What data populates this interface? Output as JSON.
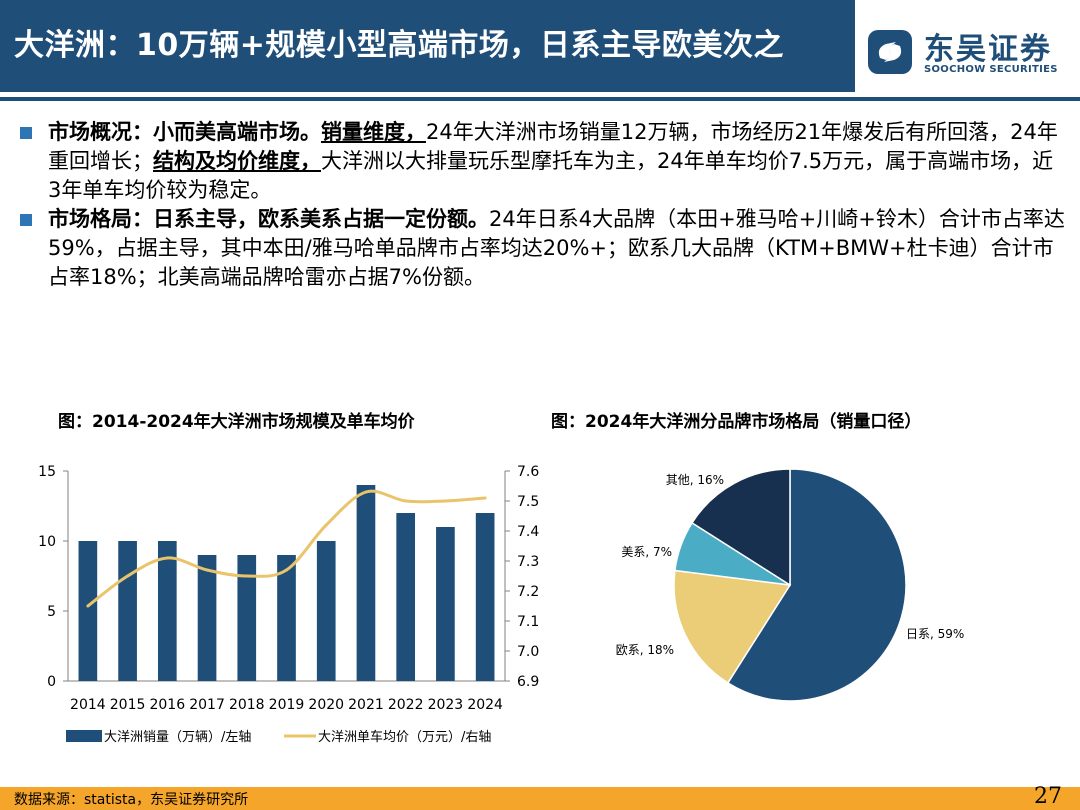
{
  "header": {
    "title": "大洋洲：10万辆+规模小型高端市场，日系主导欧美次之",
    "logo_cn": "东吴证券",
    "logo_en": "SOOCHOW SECURITIES"
  },
  "bullets": [
    {
      "lead": "市场概况：小而美高端市场。",
      "u1": "销量维度，",
      "t1": "24年大洋洲市场销量12万辆，市场经历21年爆发后有所回落，24年重回增长；",
      "u2": "结构及均价维度，",
      "t2": "大洋洲以大排量玩乐型摩托车为主，24年单车均价7.5万元，属于高端市场，近3年单车均价较为稳定。"
    },
    {
      "lead": "市场格局：日系主导，欧系美系占据一定份额。",
      "t1": "24年日系4大品牌（本田+雅马哈+川崎+铃木）合计市占率达59%，占据主导，其中本田/雅马哈单品牌市占率均达20%+；欧系几大品牌（KTM+BMW+杜卡迪）合计市占率18%；北美高端品牌哈雷亦占据7%份额。"
    }
  ],
  "chart_data": [
    {
      "type": "bar",
      "title": "图：2014-2024年大洋洲市场规模及单车均价",
      "categories": [
        "2014",
        "2015",
        "2016",
        "2017",
        "2018",
        "2019",
        "2020",
        "2021",
        "2022",
        "2023",
        "2024"
      ],
      "series": [
        {
          "name": "大洋洲销量（万辆）/左轴",
          "type": "bar",
          "axis": "left",
          "color": "#1f4e79",
          "values": [
            10,
            10,
            10,
            9,
            9,
            9,
            10,
            14,
            12,
            11,
            12
          ]
        },
        {
          "name": "大洋洲单车均价（万元）/右轴",
          "type": "line",
          "axis": "right",
          "color": "#e9c46a",
          "values": [
            7.15,
            7.25,
            7.31,
            7.27,
            7.25,
            7.27,
            7.42,
            7.53,
            7.5,
            7.5,
            7.51
          ]
        }
      ],
      "ylim_left": [
        0,
        15
      ],
      "yticks_left": [
        "0",
        "5",
        "10",
        "15"
      ],
      "ylim_right": [
        6.9,
        7.6
      ],
      "yticks_right": [
        "6.9",
        "7.0",
        "7.1",
        "7.2",
        "7.3",
        "7.4",
        "7.5",
        "7.6"
      ]
    },
    {
      "type": "pie",
      "title": "图：2024年大洋洲分品牌市场格局（销量口径）",
      "slices": [
        {
          "label": "日系, 59%",
          "value": 59,
          "color": "#1f4e79"
        },
        {
          "label": "欧系, 18%",
          "value": 18,
          "color": "#ebcd78"
        },
        {
          "label": "美系, 7%",
          "value": 7,
          "color": "#4bacc6"
        },
        {
          "label": "其他, 16%",
          "value": 16,
          "color": "#17304f"
        }
      ]
    }
  ],
  "footer": {
    "source": "数据来源：statista，东吴证券研究所",
    "page": "27"
  }
}
